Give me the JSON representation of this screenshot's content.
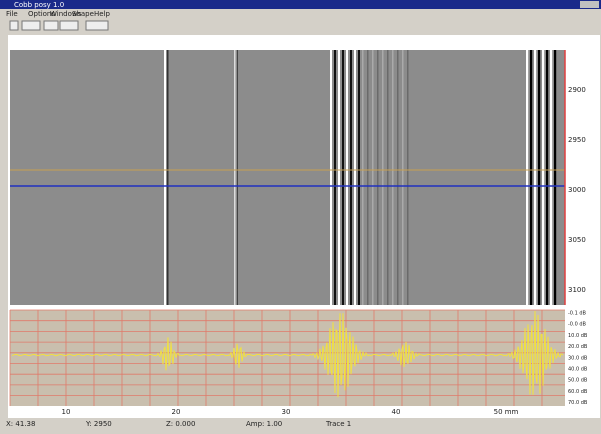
{
  "window": {
    "title": "Cobb posy 1.0"
  },
  "menu": [
    "File",
    "Options",
    "Windows",
    "Shape",
    "Help"
  ],
  "right_axis": [
    "2900",
    "2950",
    "3000",
    "3050",
    "3100"
  ],
  "trace_axis": [
    "-0.1 dB",
    "-0.0 dB",
    "10.0 dB",
    "20.0 dB",
    "30.0 dB",
    "40.0 dB",
    "50.0 dB",
    "60.0 dB",
    "70.0 dB"
  ],
  "x_axis": [
    "10",
    "20",
    "30",
    "40",
    "50 mm"
  ],
  "status": [
    "X: 41.38",
    "Y: 2950",
    "Z: 0.000",
    "Amp: 1.00",
    "Trace 1"
  ]
}
